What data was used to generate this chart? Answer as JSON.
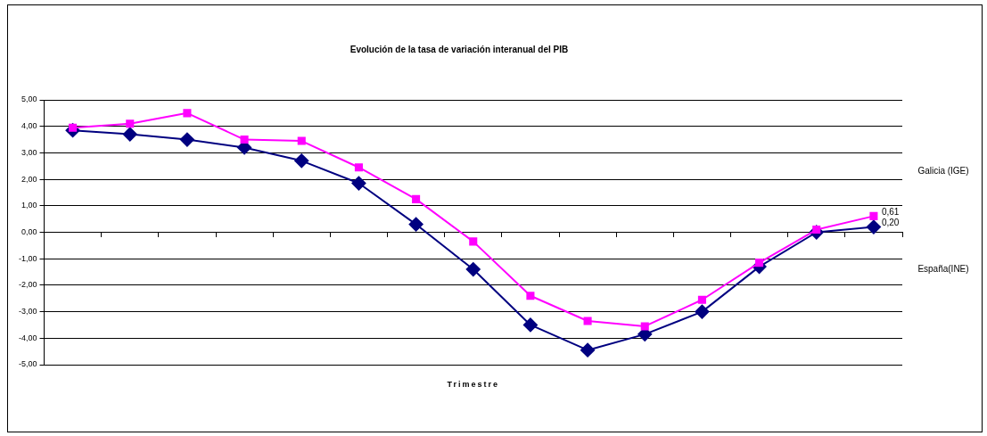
{
  "chart_data": {
    "type": "line",
    "title": "Evolución de la tasa de variación interanual del PIB",
    "xlabel": "Trimestre",
    "categories": [
      null,
      null,
      null,
      null,
      null,
      null,
      null,
      null,
      null,
      null,
      null,
      null,
      null,
      null,
      null
    ],
    "series": [
      {
        "name": "Galicia (IGE)",
        "color": "#ff00ff",
        "marker": "square",
        "values": [
          3.95,
          4.1,
          4.5,
          3.5,
          3.45,
          2.45,
          1.25,
          -0.35,
          -2.4,
          -3.35,
          -3.55,
          -2.55,
          -1.15,
          0.1,
          0.61
        ],
        "value_labels": [
          null,
          null,
          null,
          null,
          null,
          null,
          null,
          null,
          null,
          null,
          null,
          null,
          null,
          null,
          "0,61"
        ]
      },
      {
        "name": "España(INE)",
        "color": "#000080",
        "marker": "diamond",
        "values": [
          3.85,
          3.7,
          3.5,
          3.2,
          2.7,
          1.85,
          0.3,
          -1.4,
          -3.5,
          -4.45,
          -3.85,
          -3.0,
          -1.3,
          0.0,
          0.2
        ],
        "value_labels": [
          null,
          null,
          null,
          null,
          null,
          null,
          null,
          null,
          null,
          null,
          null,
          null,
          null,
          null,
          "0,20"
        ]
      }
    ],
    "ylim": [
      -5,
      5
    ],
    "yticks": [
      {
        "value": -5,
        "label": "-5,00"
      },
      {
        "value": -4,
        "label": "-4,00"
      },
      {
        "value": -3,
        "label": "-3,00"
      },
      {
        "value": -2,
        "label": "-2,00"
      },
      {
        "value": -1,
        "label": "-1,00"
      },
      {
        "value": 0,
        "label": "0,00"
      },
      {
        "value": 1,
        "label": "1,00"
      },
      {
        "value": 2,
        "label": "2,00"
      },
      {
        "value": 3,
        "label": "3,00"
      },
      {
        "value": 4,
        "label": "4,00"
      },
      {
        "value": 5,
        "label": "5,00"
      }
    ],
    "grid": "y",
    "legend": "right",
    "line_style": "solid"
  }
}
